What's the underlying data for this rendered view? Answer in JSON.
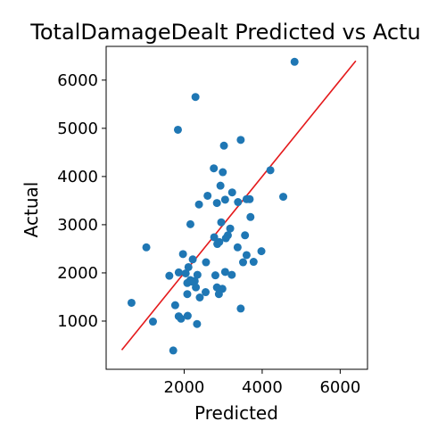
{
  "chart_data": {
    "type": "scatter",
    "title": "TotalDamageDealt Predicted vs Actu",
    "xlabel": "Predicted",
    "ylabel": "Actual",
    "xlim": [
      0,
      6700
    ],
    "ylim": [
      0,
      6700
    ],
    "xticks": [
      2000,
      4000,
      6000
    ],
    "yticks": [
      1000,
      2000,
      3000,
      4000,
      5000,
      6000
    ],
    "grid": false,
    "legend": "none",
    "colors": {
      "points": "#1f77b4",
      "line": "#e41a1c",
      "axes": "#000000"
    },
    "reference_line": {
      "x": [
        400,
        6400
      ],
      "y": [
        400,
        6400
      ]
    },
    "series": [
      {
        "x": [
          4830,
          2290,
          1840,
          3020,
          3450,
          4210,
          2990,
          2760,
          3230,
          2930,
          4540,
          2600,
          3600,
          3050,
          2380,
          2840,
          3680,
          3380,
          2160,
          3700,
          2950,
          3560,
          3180,
          2770,
          3120,
          2900,
          3070,
          2850,
          3370,
          3600,
          3980,
          1030,
          1970,
          2220,
          3780,
          3510,
          2560,
          2110,
          2800,
          3220,
          1860,
          2340,
          2160,
          2040,
          3050,
          2840,
          2270,
          2080,
          2200,
          1620,
          2300,
          2980,
          2890,
          2550,
          2080,
          2400,
          650,
          1770,
          3450,
          2090,
          1860,
          1920,
          1200,
          2330,
          1720
        ],
        "y": [
          6380,
          5650,
          4970,
          4640,
          4760,
          4130,
          4090,
          4170,
          3670,
          3810,
          3580,
          3600,
          3530,
          3520,
          3420,
          3450,
          3530,
          3470,
          3010,
          3160,
          3050,
          2780,
          2920,
          2740,
          2780,
          2640,
          2720,
          2600,
          2530,
          2370,
          2450,
          2530,
          2390,
          2280,
          2230,
          2220,
          2220,
          2120,
          1950,
          1960,
          2010,
          1960,
          1850,
          1990,
          2020,
          1700,
          1830,
          1790,
          1820,
          1940,
          1700,
          1670,
          1560,
          1600,
          1560,
          1490,
          1380,
          1330,
          1260,
          1110,
          1100,
          1050,
          990,
          940,
          390
        ]
      }
    ]
  }
}
